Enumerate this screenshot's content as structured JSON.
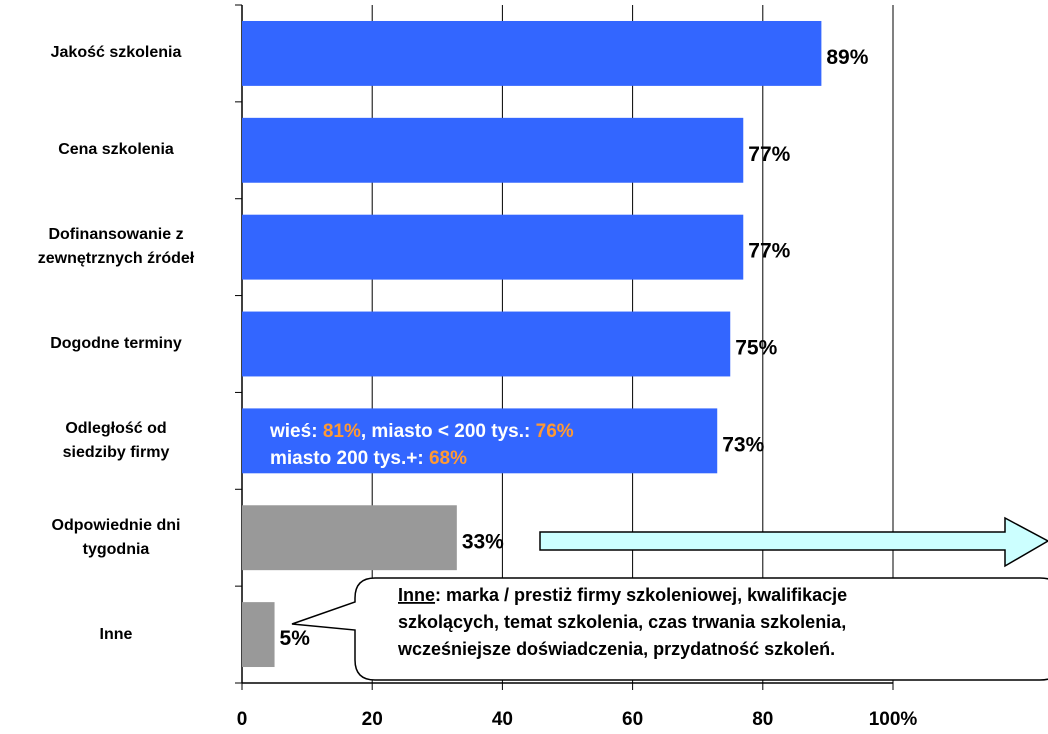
{
  "chart_data": {
    "type": "barh",
    "categories": [
      "Jakość szkolenia",
      "Cena szkolenia",
      "Dofinansowanie z\nzewnętrznych źródeł",
      "Dogodne terminy",
      "Odległość od\nsiedziby firmy",
      "Odpowiednie dni\ntygodnia",
      "Inne"
    ],
    "values": [
      89,
      77,
      77,
      75,
      73,
      33,
      5
    ],
    "value_labels": [
      "89%",
      "77%",
      "77%",
      "75%",
      "73%",
      "33%",
      "5%"
    ],
    "colors": [
      "#3366ff",
      "#3366ff",
      "#3366ff",
      "#3366ff",
      "#3366ff",
      "#999999",
      "#999999"
    ],
    "xlim": [
      0,
      100
    ],
    "xticks": [
      0,
      20,
      40,
      60,
      80,
      {
        "value": 100,
        "label": "100%"
      }
    ],
    "grid": true,
    "bar_annotation": [
      [
        "wieś: ",
        "81%",
        ", miasto < 200 tys.: ",
        "76%"
      ],
      [
        "miasto 200 tys.+: ",
        "68%"
      ]
    ],
    "callout": {
      "heading": "Inne",
      "lines": [
        ": marka / prestiż firmy szkoleniowej, kwalifikacje",
        "szkolących, temat szkolenia, czas trwania szkolenia,",
        "wcześniejsze doświadczenia, przydatność szkoleń."
      ]
    }
  }
}
